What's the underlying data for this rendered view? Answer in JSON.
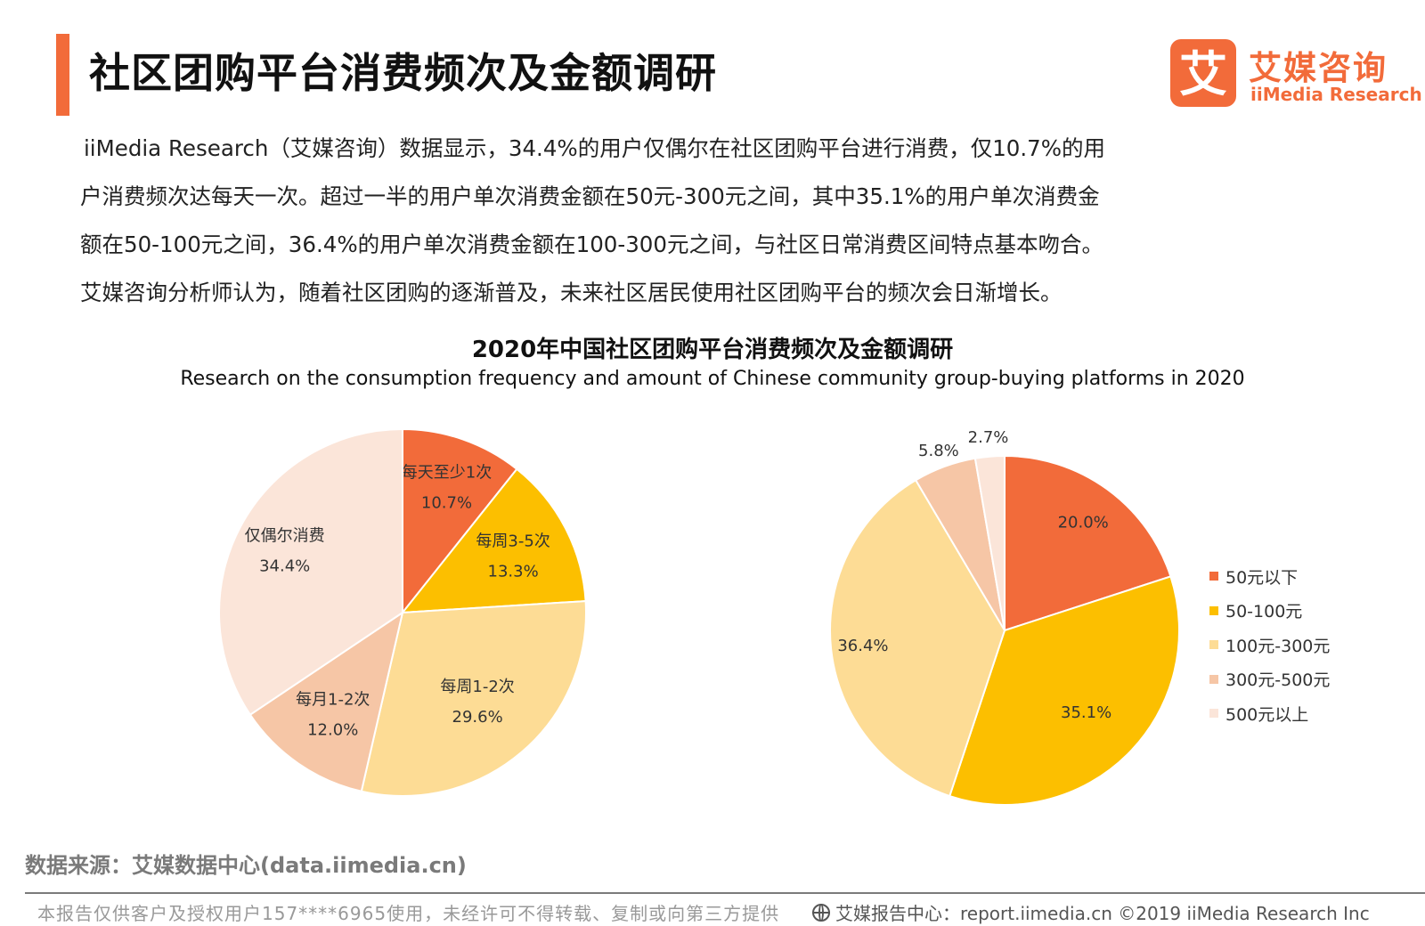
{
  "header": {
    "title": "社区团购平台消费频次及金额调研",
    "logo_cn": "艾媒咨询",
    "logo_en": "iiMedia Research",
    "logo_mark_char": "艾",
    "accent_color": "#f26b3a"
  },
  "intro_lines": [
    "iiMedia Research（艾媒咨询）数据显示，34.4%的用户仅偶尔在社区团购平台进行消费，仅10.7%的用",
    "户消费频次达每天一次。超过一半的用户单次消费金额在50元-300元之间，其中35.1%的用户单次消费金",
    "额在50-100元之间，36.4%的用户单次消费金额在100-300元之间，与社区日常消费区间特点基本吻合。",
    "艾媒咨询分析师认为，随着社区团购的逐渐普及，未来社区居民使用社区团购平台的频次会日渐增长。"
  ],
  "chart_title": "2020年中国社区团购平台消费频次及金额调研",
  "chart_subtitle": "Research on the consumption frequency and amount of Chinese community group-buying platforms in 2020",
  "chart_data": [
    {
      "type": "pie",
      "categories": [
        "每天至少1次",
        "每周3-5次",
        "每周1-2次",
        "每月1-2次",
        "仅偶尔消费"
      ],
      "values": [
        10.7,
        13.3,
        29.6,
        12.0,
        34.4
      ],
      "value_labels": [
        "10.7%",
        "13.3%",
        "29.6%",
        "12.0%",
        "34.4%"
      ],
      "colors": [
        "#f26b3a",
        "#fcbf00",
        "#fddc95",
        "#f6c6a6",
        "#fbe5d9"
      ],
      "labels_inside": true
    },
    {
      "type": "pie",
      "categories": [
        "50元以下",
        "50-100元",
        "100元-300元",
        "300元-500元",
        "500元以上"
      ],
      "values": [
        20.0,
        35.1,
        36.4,
        5.8,
        2.7
      ],
      "value_labels": [
        "20.0%",
        "35.1%",
        "36.4%",
        "5.8%",
        "2.7%"
      ],
      "colors": [
        "#f26b3a",
        "#fcbf00",
        "#fddc95",
        "#f6c6a6",
        "#fbe5d9"
      ],
      "legend_position": "right"
    }
  ],
  "source": "数据来源：艾媒数据中心(data.iimedia.cn)",
  "footer": {
    "left": "本报告仅供客户及授权用户157****6965使用，未经许可不得转载、复制或向第三方提供",
    "right": "艾媒报告中心：report.iimedia.cn  ©2019  iiMedia Research  Inc",
    "globe_icon": "globe-icon"
  }
}
